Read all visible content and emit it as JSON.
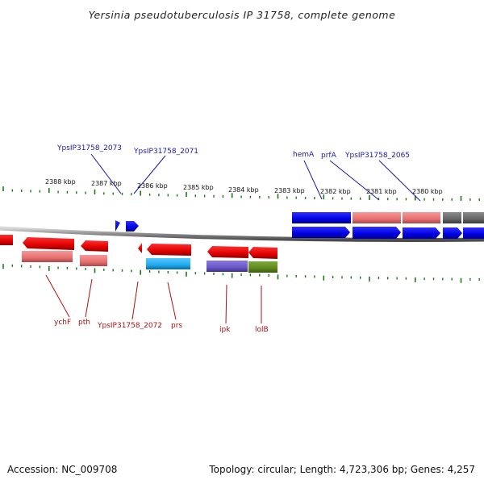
{
  "title": "Yersinia pseudotuberculosis IP 31758, complete genome",
  "footer": {
    "accession": "Accession: NC_009708",
    "info": "Topology: circular; Length: 4,723,306 bp; Genes: 4,257"
  },
  "colors": {
    "blue": "#0000ee",
    "red": "#ee0000",
    "pink": "#ee7878",
    "gray": "#666666",
    "cyan": "#22aaee",
    "purple": "#6a58c8",
    "olive": "#5f8a1e",
    "tick": "#1a7a1a",
    "label_top": "#1a1aa8",
    "label_bottom": "#b01010"
  },
  "ticks": [
    {
      "label": "2388 kbp"
    },
    {
      "label": "2387 kbp"
    },
    {
      "label": "2386 kbp"
    },
    {
      "label": "2385 kbp"
    },
    {
      "label": "2384 kbp"
    },
    {
      "label": "2383 kbp"
    },
    {
      "label": "2382 kbp"
    },
    {
      "label": "2381 kbp"
    },
    {
      "label": "2380 kbp"
    }
  ],
  "top_labels": [
    {
      "text": "YpsIP31758_2073"
    },
    {
      "text": "YpsIP31758_2071"
    },
    {
      "text": "hemA"
    },
    {
      "text": "prfA"
    },
    {
      "text": "YpsIP31758_2065"
    }
  ],
  "bottom_labels": [
    {
      "text": "ychF"
    },
    {
      "text": "pth"
    },
    {
      "text": "YpsIP31758_2072"
    },
    {
      "text": "prs"
    },
    {
      "text": "ipk"
    },
    {
      "text": "lolB"
    }
  ],
  "features": [
    {
      "name": "gene-hemA-block",
      "color": "blue"
    },
    {
      "name": "gene-prfA-block",
      "color": "pink"
    },
    {
      "name": "gene-2065-block",
      "color": "pink"
    },
    {
      "name": "gene-gray-block",
      "color": "gray"
    }
  ]
}
